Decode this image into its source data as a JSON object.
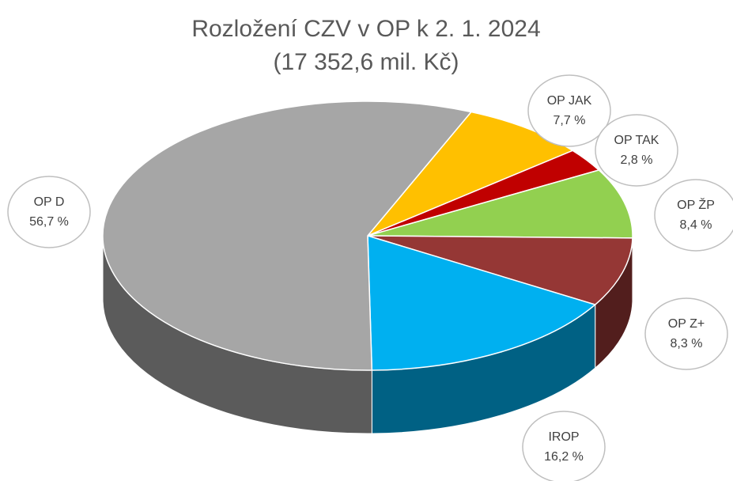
{
  "chart_data": {
    "type": "pie3d",
    "title": "Rozložení CZV v OP k 2. 1. 2024",
    "subtitle": "(17 352,6 mil. Kč)",
    "categories": [
      "OP JAK",
      "OP TAK",
      "OP ŽP",
      "OP Z+",
      "IROP",
      "OP D"
    ],
    "values": [
      7.7,
      2.8,
      8.4,
      8.3,
      16.2,
      56.7
    ],
    "value_labels": [
      "7,7 %",
      "2,8 %",
      "8,4 %",
      "8,3 %",
      "16,2 %",
      "56,7 %"
    ],
    "colors": [
      "#ffc000",
      "#c00000",
      "#92d050",
      "#953735",
      "#00b0f0",
      "#a6a6a6"
    ]
  }
}
